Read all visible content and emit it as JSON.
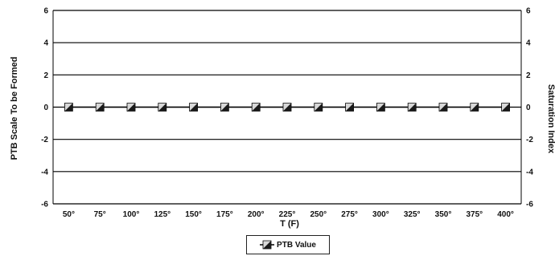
{
  "chart_data": {
    "type": "line",
    "categories": [
      "50°",
      "75°",
      "100°",
      "125°",
      "150°",
      "175°",
      "200°",
      "225°",
      "250°",
      "275°",
      "300°",
      "325°",
      "350°",
      "375°",
      "400°"
    ],
    "series": [
      {
        "name": "PTB Value",
        "values": [
          0,
          0,
          0,
          0,
          0,
          0,
          0,
          0,
          0,
          0,
          0,
          0,
          0,
          0,
          0
        ]
      }
    ],
    "xlabel": "T (F)",
    "ylabel": "PTB Scale To be Formed",
    "y2label": "Saturation Index",
    "ylim": [
      -6,
      6
    ],
    "y2lim": [
      -6,
      6
    ],
    "yticks": [
      "6",
      "4",
      "2",
      "0",
      "-2",
      "-4",
      "-6"
    ],
    "y2ticks": [
      "6",
      "4",
      "2",
      "0",
      "-2",
      "-4",
      "-6"
    ],
    "grid": true,
    "legend_position": "bottom-center",
    "colors": {
      "line": "#000000",
      "marker_dark": "#1a1a1a",
      "marker_light": "#d8d8d8",
      "grid": "#000000"
    }
  }
}
